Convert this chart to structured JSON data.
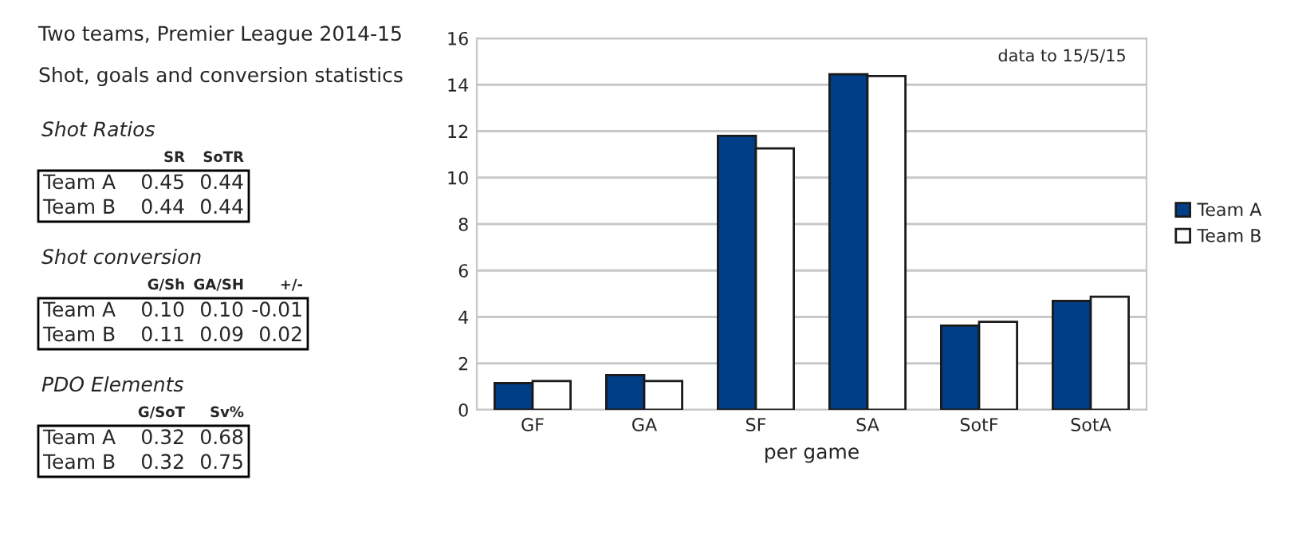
{
  "chart_data": [
    {
      "type": "other",
      "title": "Two teams, Premier League 2014-15",
      "subtitle": "Shot, goals and conversion statistics"
    },
    {
      "type": "other",
      "title": "Shot Ratios",
      "categories": [
        "SR",
        "SoTR"
      ],
      "y_categories": [
        "Team A",
        "Team B"
      ],
      "cell_labels": [
        [
          "0.45",
          "0.44"
        ],
        [
          "0.44",
          "0.44"
        ]
      ]
    },
    {
      "type": "other",
      "title": "Shot conversion",
      "categories": [
        "G/Sh",
        "GA/SH",
        "+/-"
      ],
      "y_categories": [
        "Team A",
        "Team B"
      ],
      "cell_labels": [
        [
          "0.10",
          "0.10",
          "-0.01"
        ],
        [
          "0.11",
          "0.09",
          "0.02"
        ]
      ]
    },
    {
      "type": "other",
      "title": "PDO Elements",
      "categories": [
        "G/SoT",
        "Sv%"
      ],
      "y_categories": [
        "Team A",
        "Team B"
      ],
      "cell_labels": [
        [
          "0.32",
          "0.68"
        ],
        [
          "0.32",
          "0.75"
        ]
      ]
    },
    {
      "type": "bar",
      "xlabel": "per game",
      "categories": [
        "GF",
        "GA",
        "SF",
        "SA",
        "SotF",
        "SotA"
      ],
      "series": [
        {
          "name": "Team A",
          "color": "#003f87",
          "values": [
            1.15,
            1.5,
            11.8,
            14.45,
            3.63,
            4.69
          ]
        },
        {
          "name": "Team B",
          "color": "#ffffff",
          "values": [
            1.24,
            1.24,
            11.26,
            14.37,
            3.79,
            4.87
          ]
        }
      ],
      "ylim": [
        0,
        16
      ],
      "yticks": [
        0,
        2,
        4,
        6,
        8,
        10,
        12,
        14,
        16
      ],
      "grid": "y",
      "legend": "right",
      "annotations": [
        "data to 15/5/15"
      ]
    }
  ]
}
